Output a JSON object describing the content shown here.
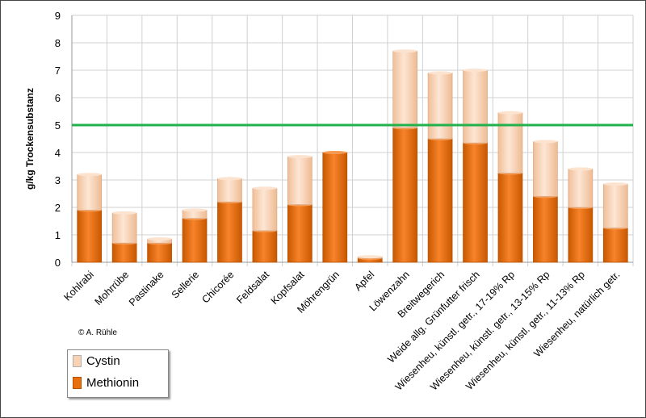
{
  "chart_data": {
    "type": "bar",
    "stacked": true,
    "ylabel": "g/kg Trockensubstanz",
    "ylim": [
      0,
      9
    ],
    "yticks": [
      0,
      1,
      2,
      3,
      4,
      5,
      6,
      7,
      8,
      9
    ],
    "grid": true,
    "legend_placement": "bottom-left",
    "categories": [
      "Kohlrabi",
      "Mohrrübe",
      "Pastinake",
      "Sellerie",
      "Chicorée",
      "Feldsalat",
      "Kopfsalat",
      "Möhrengrün",
      "Apfel",
      "Löwenzahn",
      "Breitwegerich",
      "Weide allg. Grünfutter frisch",
      "Wiesenheu, künstl. getr., 17-19% Rp",
      "Wiesenheu, künstl. getr., 13-15% Rp",
      "Wiesenheu, künstl. getr., 11-13% Rp",
      "Wiesenheu, natürlich getr."
    ],
    "series": [
      {
        "name": "Methionin",
        "color": "#e8700e",
        "values": [
          1.9,
          0.7,
          0.7,
          1.6,
          2.2,
          1.15,
          2.1,
          4.0,
          0.15,
          4.9,
          4.5,
          4.35,
          3.25,
          2.4,
          2.0,
          1.25
        ]
      },
      {
        "name": "Cystin",
        "color": "#f8d2b2",
        "values": [
          1.3,
          1.1,
          0.15,
          0.3,
          0.85,
          1.55,
          1.75,
          0.0,
          0.05,
          2.8,
          2.4,
          2.65,
          2.2,
          2.0,
          1.4,
          1.6
        ]
      }
    ],
    "reference_line": {
      "value": 5,
      "color": "#22b14c"
    }
  },
  "copyright": "© A. Rühle"
}
